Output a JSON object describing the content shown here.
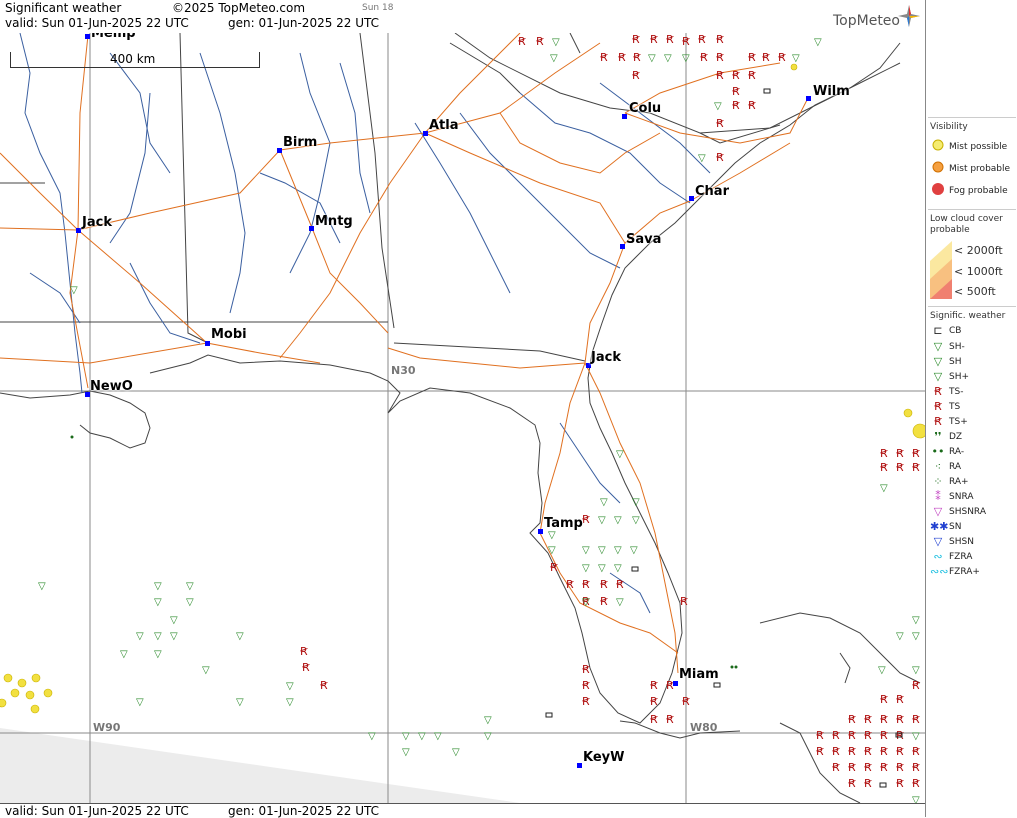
{
  "header": {
    "title": "Significant weather",
    "copyright": "©2025 TopMeteo.com",
    "day_tag": "Sun 18",
    "valid": "valid:  Sun  01-Jun-2025  22 UTC",
    "gen": "gen: 01-Jun-2025 22 UTC",
    "logo": "TopMeteo"
  },
  "footer": {
    "valid": "valid:  Sun  01-Jun-2025  22 UTC",
    "gen": "gen: 01-Jun-2025 22 UTC"
  },
  "map": {
    "scale": "400 km",
    "grid_labels": [
      "N30",
      "W90",
      "W80"
    ],
    "cities": [
      "Memp",
      "Wilm",
      "Colu",
      "Atla",
      "Birm",
      "Char",
      "Jack",
      "Mntg",
      "Sava",
      "Mobi",
      "Jack",
      "NewO",
      "Tamp",
      "Miam",
      "KeyW"
    ],
    "colors": {
      "border": "#444444",
      "road": "#e07020",
      "river": "#3a5fa0",
      "grid": "#8a8a8a",
      "ts": "#b01010",
      "shower": "#2a8a2a",
      "mist": "#f0e040",
      "city": "#0000ff"
    }
  },
  "legend": {
    "visibility_title": "Visibility",
    "mist_possible": "Mist possible",
    "mist_probable": "Mist probable",
    "fog_probable": "Fog probable",
    "lowcloud_title": "Low cloud cover probable",
    "lc1": "< 2000ft",
    "lc2": "< 1000ft",
    "lc3": "<   500ft",
    "sigwx_title": "Signific. weather",
    "items": [
      "CB",
      "SH-",
      "SH",
      "SH+",
      "TS-",
      "TS",
      "TS+",
      "DZ",
      "RA-",
      "RA",
      "RA+",
      "SNRA",
      "SHSNRA",
      "SN",
      "SHSN",
      "FZRA",
      "FZRA+"
    ]
  }
}
